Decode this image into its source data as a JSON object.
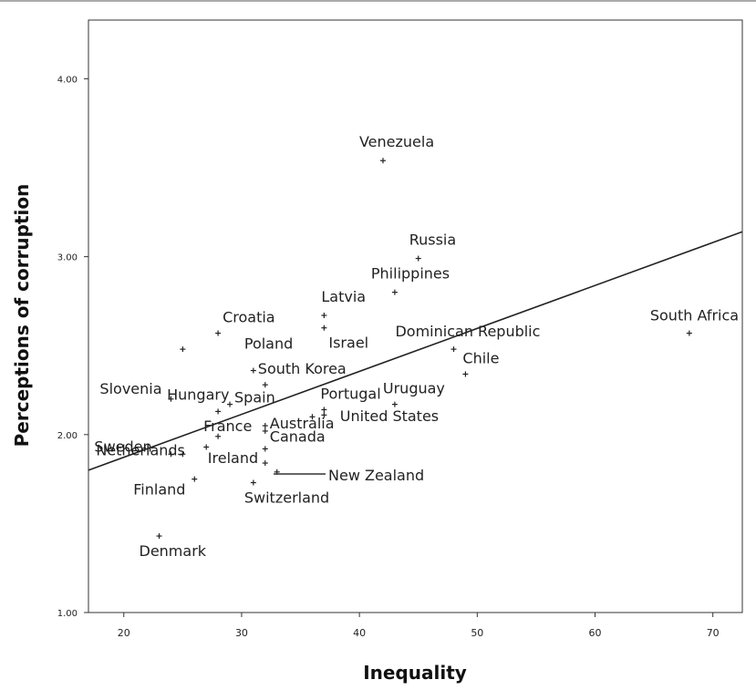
{
  "chart_data": {
    "type": "scatter",
    "xlabel": "Inequality",
    "ylabel": "Perceptions of corruption",
    "xlim": [
      17,
      72.5
    ],
    "ylim": [
      1.0,
      4.33
    ],
    "x_ticks": [
      20,
      30,
      40,
      50,
      60,
      70
    ],
    "y_ticks": [
      1.0,
      2.0,
      3.0,
      4.0
    ],
    "x_tick_labels": [
      "20",
      "30",
      "40",
      "50",
      "60",
      "70"
    ],
    "y_tick_labels": [
      "1.00",
      "2.00",
      "3.00",
      "4.00"
    ],
    "grid": false,
    "fit_line": {
      "x": [
        17,
        72.5
      ],
      "y": [
        1.8,
        3.14
      ]
    },
    "points": [
      {
        "label": "Venezuela",
        "x": 42,
        "y": 3.54
      },
      {
        "label": "Russia",
        "x": 45,
        "y": 2.99
      },
      {
        "label": "Philippines",
        "x": 43,
        "y": 2.8
      },
      {
        "label": "Latvia",
        "x": 37,
        "y": 2.67
      },
      {
        "label": "Israel",
        "x": 37,
        "y": 2.6
      },
      {
        "label": "Croatia",
        "x": 28,
        "y": 2.57
      },
      {
        "label": "",
        "x": 25,
        "y": 2.48
      },
      {
        "label": "Dominican Republic",
        "x": 48,
        "y": 2.48
      },
      {
        "label": "South Africa",
        "x": 68,
        "y": 2.57
      },
      {
        "label": "Chile",
        "x": 49,
        "y": 2.34
      },
      {
        "label": "Poland",
        "x": 31,
        "y": 2.36
      },
      {
        "label": "South Korea",
        "x": 32,
        "y": 2.28
      },
      {
        "label": "Uruguay",
        "x": 43,
        "y": 2.17
      },
      {
        "label": "Slovenia",
        "x": 24,
        "y": 2.2
      },
      {
        "label": "Hungary",
        "x": 28,
        "y": 2.13
      },
      {
        "label": "Spain",
        "x": 29,
        "y": 2.17
      },
      {
        "label": "Portugal",
        "x": 37,
        "y": 2.14
      },
      {
        "label": "",
        "x": 37,
        "y": 2.11
      },
      {
        "label": "",
        "x": 36,
        "y": 2.1
      },
      {
        "label": "France",
        "x": 28,
        "y": 1.99
      },
      {
        "label": "Australia",
        "x": 32,
        "y": 2.05
      },
      {
        "label": "United States",
        "x": 32,
        "y": 2.02
      },
      {
        "label": "",
        "x": 27,
        "y": 1.93
      },
      {
        "label": "Netherlands",
        "x": 25,
        "y": 1.89
      },
      {
        "label": "Sweden",
        "x": 24,
        "y": 1.89
      },
      {
        "label": "Canada",
        "x": 32,
        "y": 1.92
      },
      {
        "label": "Ireland",
        "x": 32,
        "y": 1.84
      },
      {
        "label": "New Zealand",
        "x": 33,
        "y": 1.79
      },
      {
        "label": "Finland",
        "x": 26,
        "y": 1.75
      },
      {
        "label": "Switzerland",
        "x": 31,
        "y": 1.73
      },
      {
        "label": "Denmark",
        "x": 23,
        "y": 1.43
      }
    ]
  }
}
